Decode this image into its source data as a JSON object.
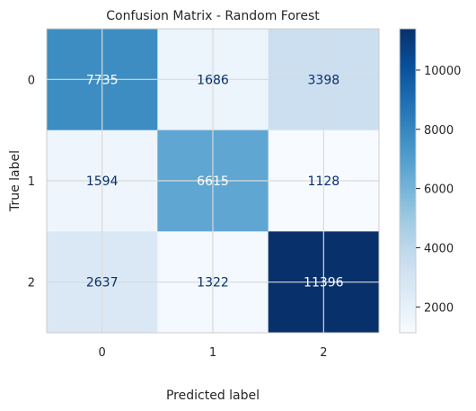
{
  "chart_data": {
    "type": "heatmap",
    "title": "Confusion Matrix - Random Forest",
    "xlabel": "Predicted label",
    "ylabel": "True label",
    "x_categories": [
      "0",
      "1",
      "2"
    ],
    "y_categories": [
      "0",
      "1",
      "2"
    ],
    "values": [
      [
        7735,
        1686,
        3398
      ],
      [
        1594,
        6615,
        1128
      ],
      [
        2637,
        1322,
        11396
      ]
    ],
    "colormap": "Blues",
    "colorbar": {
      "range": [
        1128,
        11396
      ],
      "ticks": [
        2000,
        4000,
        6000,
        8000,
        10000
      ],
      "tick_labels": [
        "2000",
        "4000",
        "6000",
        "8000",
        "10000"
      ]
    },
    "grid": true,
    "text_color_light": "#ffffff",
    "text_color_dark": "#08306b"
  }
}
